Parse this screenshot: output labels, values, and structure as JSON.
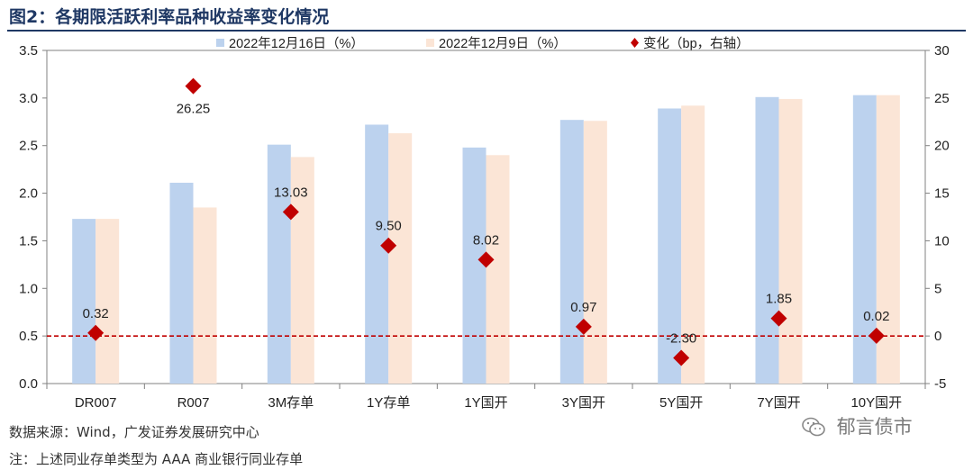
{
  "figure": {
    "title": "图2：各期限活跃利率品种收益率变化情况",
    "source": "数据来源：Wind，广发证券发展研究中心",
    "note": "注：上述同业存单类型为 AAA 商业银行同业存单",
    "watermark": "郁言债市",
    "watermark_icon": "wechat-icon"
  },
  "colors": {
    "series_dec16": "#bcd2ee",
    "series_dec9": "#fbe5d6",
    "change": "#c00000",
    "zero_line": "#c00000",
    "title": "#1f3864"
  },
  "chart_data": {
    "type": "bar",
    "categories": [
      "DR007",
      "R007",
      "3M存单",
      "1Y存单",
      "1Y国开",
      "3Y国开",
      "5Y国开",
      "7Y国开",
      "10Y国开"
    ],
    "series": [
      {
        "name": "2022年12月16日（%）",
        "axis": "left",
        "type": "bar",
        "values": [
          1.73,
          2.11,
          2.51,
          2.72,
          2.48,
          2.77,
          2.89,
          3.01,
          3.03
        ]
      },
      {
        "name": "2022年12月9日（%）",
        "axis": "left",
        "type": "bar",
        "values": [
          1.73,
          1.85,
          2.38,
          2.63,
          2.4,
          2.76,
          2.92,
          2.99,
          3.03
        ]
      },
      {
        "name": "变化（bp，右轴）",
        "axis": "right",
        "type": "scatter",
        "marker": "diamond",
        "values": [
          0.32,
          26.25,
          13.03,
          9.5,
          8.02,
          0.97,
          -2.3,
          1.85,
          0.02
        ],
        "labels": [
          "0.32",
          "26.25",
          "13.03",
          "9.50",
          "8.02",
          "0.97",
          "-2.30",
          "1.85",
          "0.02"
        ]
      }
    ],
    "y_left": {
      "lim": [
        0.0,
        3.5
      ],
      "ticks": [
        "0.0",
        "0.5",
        "1.0",
        "1.5",
        "2.0",
        "2.5",
        "3.0",
        "3.5"
      ]
    },
    "y_right": {
      "lim": [
        -5,
        30
      ],
      "ticks": [
        "-5",
        "0",
        "5",
        "10",
        "15",
        "20",
        "25",
        "30"
      ]
    },
    "reference_line": {
      "axis": "right",
      "value": 0,
      "style": "dashed"
    },
    "legend": "top-center",
    "grid": false
  }
}
